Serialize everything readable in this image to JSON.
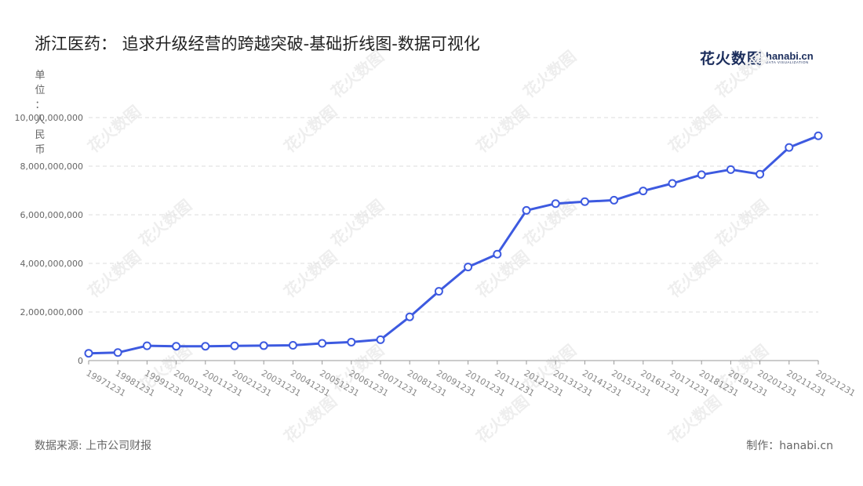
{
  "title": "浙江医药： 追求升级经营的跨越突破-基础折线图-数据可视化",
  "logo": {
    "cn": "花火数图",
    "domain": "hanabi.cn",
    "tag": "DATA VISUALIZATION"
  },
  "watermark": "花火数图",
  "y_unit_label": "单位：人民币",
  "footer": {
    "source": "数据来源: 上市公司财报",
    "credit": "制作：hanabi.cn"
  },
  "colors": {
    "line": "#3d5ae0",
    "grid": "#dddddd",
    "axis": "#999999",
    "title": "#222222",
    "muted": "#666666"
  },
  "chart_data": {
    "type": "line",
    "title": "浙江医药： 追求升级经营的跨越突破-基础折线图-数据可视化",
    "ylabel": "单位：人民币",
    "xlabel": "",
    "ylim": [
      0,
      10000000000
    ],
    "yticks": [
      0,
      2000000000,
      4000000000,
      6000000000,
      8000000000,
      10000000000
    ],
    "ytick_labels": [
      "0",
      "2,000,000,000",
      "4,000,000,000",
      "6,000,000,000",
      "8,000,000,000",
      "10,000,000,000"
    ],
    "grid": true,
    "categories": [
      "19971231",
      "19981231",
      "19991231",
      "20001231",
      "20011231",
      "20021231",
      "20031231",
      "20041231",
      "20051231",
      "20061231",
      "20071231",
      "20081231",
      "20091231",
      "20101231",
      "20111231",
      "20121231",
      "20131231",
      "20141231",
      "20151231",
      "20161231",
      "20171231",
      "20181231",
      "20191231",
      "20201231",
      "20211231",
      "20221231"
    ],
    "series": [
      {
        "values": [
          300000000,
          330000000,
          610000000,
          590000000,
          590000000,
          605000000,
          615000000,
          630000000,
          710000000,
          760000000,
          860000000,
          1800000000,
          2850000000,
          3850000000,
          4380000000,
          6180000000,
          6460000000,
          6540000000,
          6600000000,
          6980000000,
          7290000000,
          7650000000,
          7860000000,
          7670000000,
          8770000000,
          9250000000
        ]
      }
    ]
  }
}
